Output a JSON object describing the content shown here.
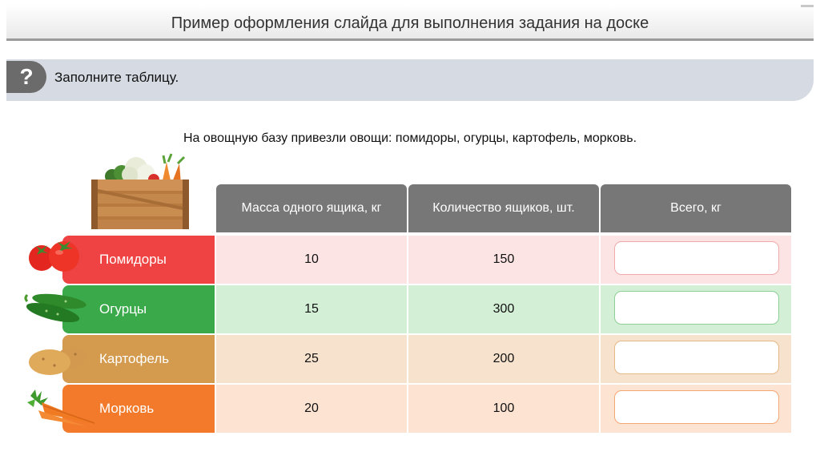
{
  "title": "Пример оформления слайда для выполнения задания на доске",
  "task": {
    "badge": "?",
    "text": "Заполните таблицу."
  },
  "intro": "На овощную базу привезли овощи: помидоры, огурцы, картофель, морковь.",
  "table": {
    "headers": [
      "Масса одного ящика, кг",
      "Количество ящиков, шт.",
      "Всего, кг"
    ],
    "rows": [
      {
        "label": "Помидоры",
        "mass": "10",
        "count": "150",
        "total": "",
        "icon": "tomato-icon",
        "color": "#ef4343",
        "bg": "#fde4e4",
        "border": "#f2a9a9"
      },
      {
        "label": "Огурцы",
        "mass": "15",
        "count": "300",
        "total": "",
        "icon": "cucumber-icon",
        "color": "#39a94a",
        "bg": "#d3efd6",
        "border": "#8dcf96"
      },
      {
        "label": "Картофель",
        "mass": "25",
        "count": "200",
        "total": "",
        "icon": "potato-icon",
        "color": "#d49a4e",
        "bg": "#f6e2cd",
        "border": "#e5b985"
      },
      {
        "label": "Морковь",
        "mass": "20",
        "count": "100",
        "total": "",
        "icon": "carrot-icon",
        "color": "#f27a2a",
        "bg": "#fde3d2",
        "border": "#f3a774"
      }
    ]
  },
  "colors": {
    "header_bg": "#777777",
    "title_rule": "#9a9a9a",
    "task_bg": "#d6dbe3",
    "badge_bg": "#6b6b6b"
  }
}
